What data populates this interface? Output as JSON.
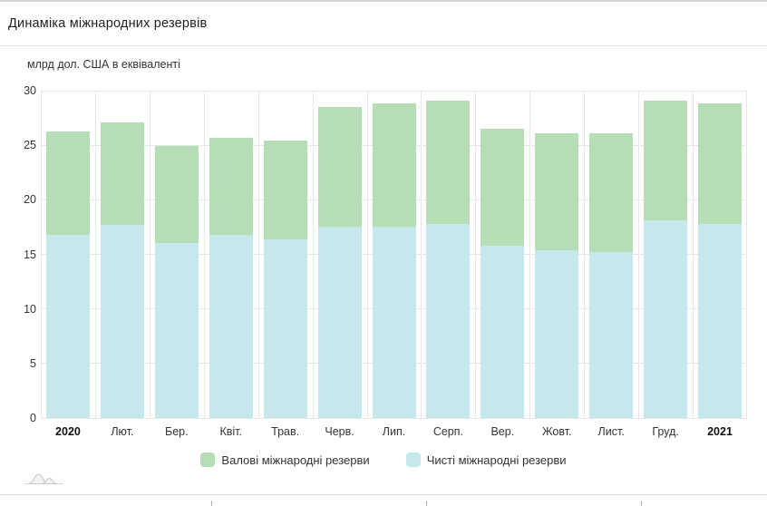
{
  "chart_data": {
    "type": "bar",
    "variant": "overlaid-columns",
    "title": "Динаміка міжнародних резервів",
    "unit_label": "млрд дол. США в еквіваленті",
    "categories": [
      "2020",
      "Лют.",
      "Бер.",
      "Квіт.",
      "Трав.",
      "Черв.",
      "Лип.",
      "Серп.",
      "Вер.",
      "Жовт.",
      "Лист.",
      "Груд.",
      "2021"
    ],
    "bold_categories": [
      "2020",
      "2021"
    ],
    "series": [
      {
        "name": "Валові міжнародні резерви",
        "color": "#b6ddb5",
        "values": [
          26.3,
          27.1,
          24.9,
          25.7,
          25.4,
          28.5,
          28.8,
          29.1,
          26.5,
          26.1,
          26.1,
          29.1,
          28.8
        ]
      },
      {
        "name": "Чисті міжнародні резерви",
        "color": "#c5e8ec",
        "values": [
          16.8,
          17.7,
          16.0,
          16.8,
          16.4,
          17.5,
          17.5,
          17.8,
          15.8,
          15.4,
          15.2,
          18.1,
          17.8
        ]
      }
    ],
    "ylim": [
      0,
      30
    ],
    "y_ticks": [
      0,
      5,
      10,
      15,
      20,
      25,
      30
    ],
    "grid": true,
    "legend_position": "bottom"
  },
  "colors": {
    "grid": "#e7e7e7",
    "gross_series": "#b6ddb5",
    "net_series": "#c5e8ec",
    "axis_text": "#333333",
    "title_text": "#1f1f1f"
  }
}
